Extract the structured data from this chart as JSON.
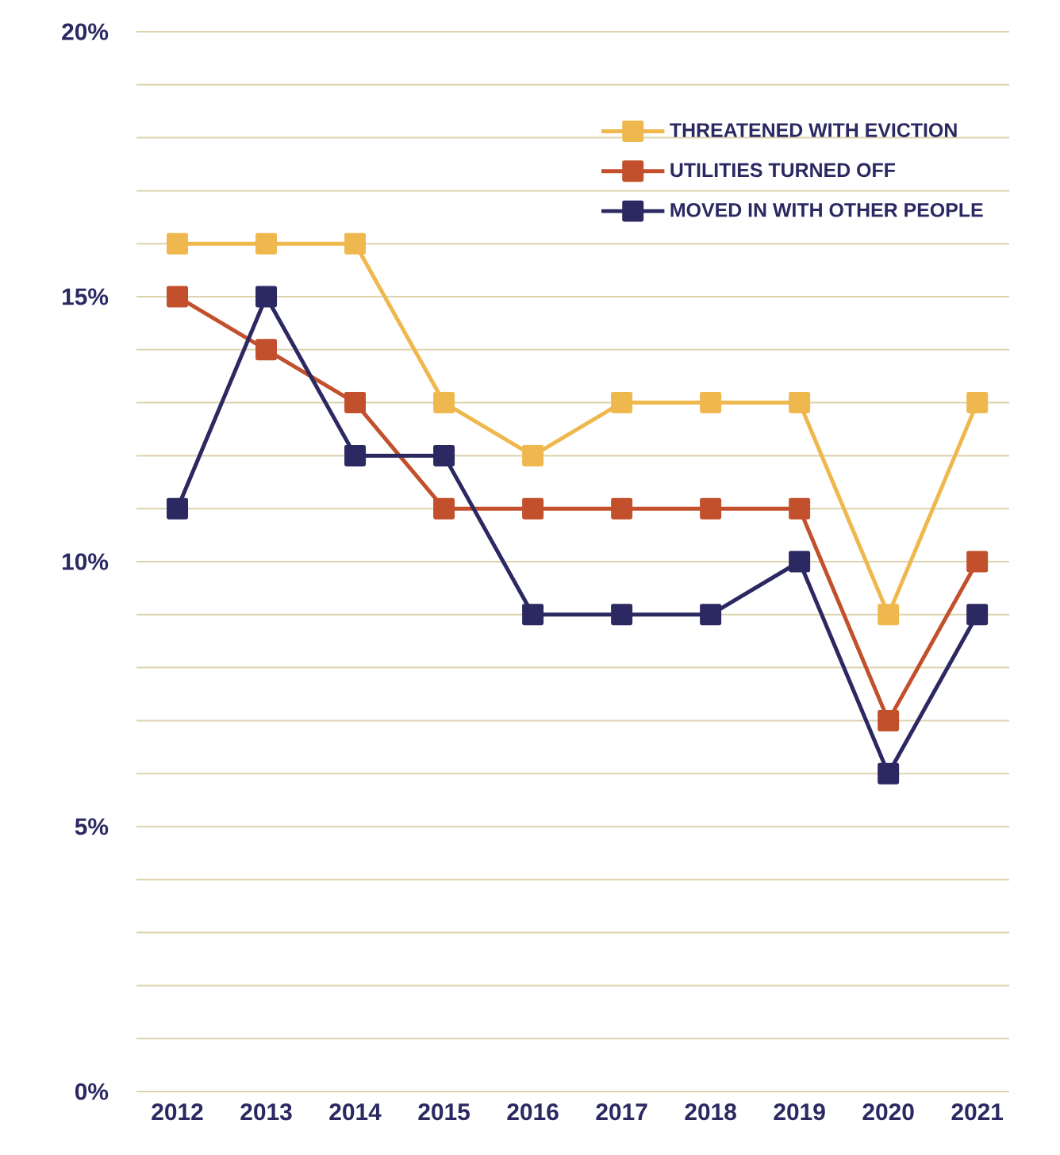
{
  "chart_data": {
    "type": "line",
    "categories": [
      "2012",
      "2013",
      "2014",
      "2015",
      "2016",
      "2017",
      "2018",
      "2019",
      "2020",
      "2021"
    ],
    "series": [
      {
        "name": "THREATENED WITH EVICTION",
        "color": "#efb84e",
        "values": [
          16,
          16,
          16,
          13,
          12,
          13,
          13,
          13,
          9,
          13
        ]
      },
      {
        "name": "UTILITIES TURNED OFF",
        "color": "#c2502c",
        "values": [
          15,
          14,
          13,
          11,
          11,
          11,
          11,
          11,
          7,
          10
        ]
      },
      {
        "name": "MOVED IN WITH OTHER PEOPLE",
        "color": "#2b2862",
        "values": [
          11,
          15,
          12,
          12,
          9,
          9,
          9,
          10,
          6,
          9
        ]
      }
    ],
    "ylim": [
      0,
      20
    ],
    "yticks": [
      {
        "value": 0,
        "label": "0%"
      },
      {
        "value": 1,
        "label": null
      },
      {
        "value": 2,
        "label": null
      },
      {
        "value": 3,
        "label": null
      },
      {
        "value": 4,
        "label": null
      },
      {
        "value": 5,
        "label": "5%"
      },
      {
        "value": 6,
        "label": null
      },
      {
        "value": 7,
        "label": null
      },
      {
        "value": 8,
        "label": null
      },
      {
        "value": 9,
        "label": null
      },
      {
        "value": 10,
        "label": "10%"
      },
      {
        "value": 11,
        "label": null
      },
      {
        "value": 12,
        "label": null
      },
      {
        "value": 13,
        "label": null
      },
      {
        "value": 14,
        "label": null
      },
      {
        "value": 15,
        "label": "15%"
      },
      {
        "value": 16,
        "label": null
      },
      {
        "value": 17,
        "label": null
      },
      {
        "value": 18,
        "label": null
      },
      {
        "value": 19,
        "label": null
      },
      {
        "value": 20,
        "label": "20%"
      }
    ],
    "grid": "y",
    "legend": "top right",
    "marker": "square",
    "line_style": "solid"
  }
}
